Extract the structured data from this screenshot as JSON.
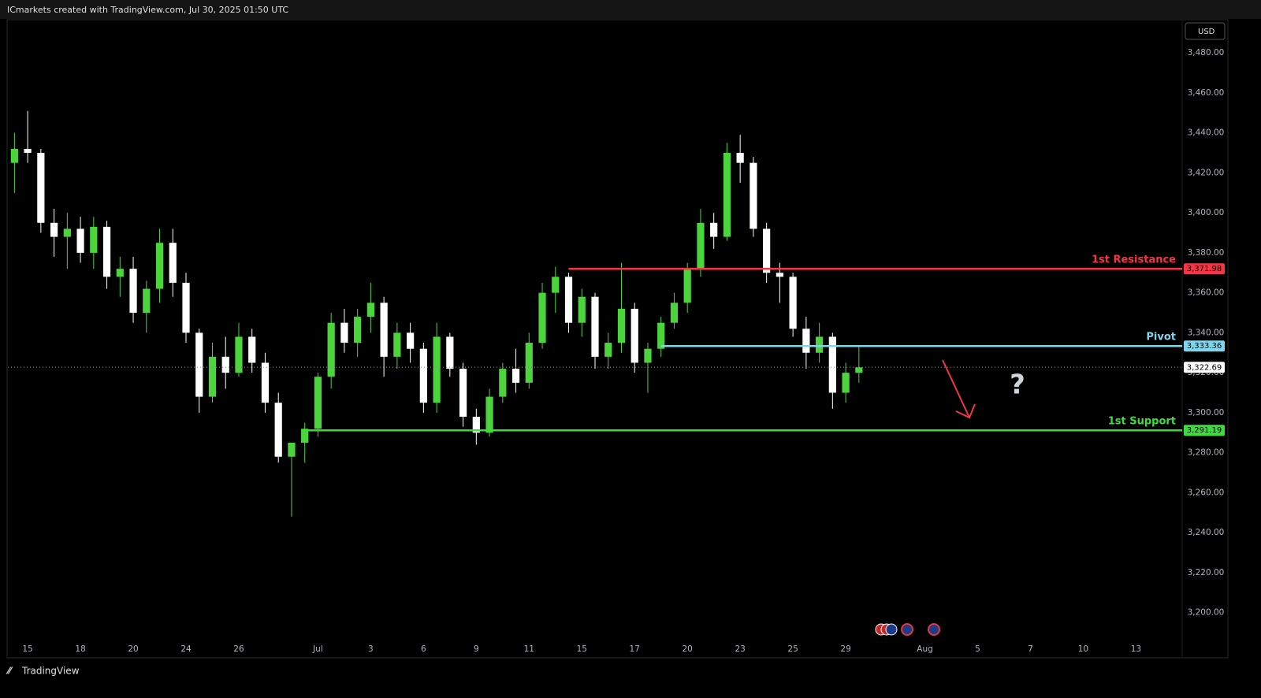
{
  "header": "ICmarkets created with TradingView.com, Jul 30, 2025 01:50 UTC",
  "currency": "USD",
  "brand": "TradingView",
  "chart_data": {
    "type": "candlestick",
    "categories": [
      null,
      "15",
      null,
      null,
      null,
      "18",
      null,
      null,
      null,
      "20",
      null,
      null,
      null,
      "24",
      null,
      null,
      null,
      "26",
      null,
      null,
      null,
      null,
      null,
      "Jul",
      null,
      null,
      null,
      "3",
      null,
      null,
      null,
      "6",
      null,
      null,
      null,
      "9",
      null,
      null,
      null,
      "11",
      null,
      null,
      null,
      "15",
      null,
      null,
      null,
      "17",
      null,
      null,
      null,
      "20",
      null,
      null,
      null,
      "23",
      null,
      null,
      null,
      "25",
      null,
      null,
      null,
      "29",
      null,
      null,
      null,
      null,
      null,
      "Aug",
      null,
      null,
      null,
      "5",
      null,
      null,
      null,
      "7",
      null,
      null,
      null,
      "10",
      null,
      null,
      null,
      "13",
      null,
      null,
      null
    ],
    "open": [
      3425,
      3432,
      3430,
      3395,
      3388,
      3392,
      3380,
      3393,
      3368,
      3372,
      3350,
      3362,
      3385,
      3365,
      3340,
      3308,
      3328,
      3320,
      3338,
      3325,
      3305,
      3278,
      3285,
      3292,
      3318,
      3345,
      3335,
      3348,
      3355,
      3328,
      3340,
      3332,
      3305,
      3338,
      3322,
      3298,
      3290,
      3308,
      3322,
      3315,
      3335,
      3360,
      3368,
      3345,
      3358,
      3328,
      3335,
      3352,
      3325,
      3332,
      3345,
      3355,
      3372,
      3395,
      3388,
      3430,
      3425,
      3392,
      3370,
      3368,
      3342,
      3330,
      3338,
      3310,
      3320,
      null,
      null,
      null,
      null,
      null,
      null,
      null,
      null,
      null,
      null,
      null,
      null,
      null,
      null,
      null,
      null,
      null,
      null,
      null,
      null,
      null,
      null,
      null,
      null
    ],
    "high": [
      3440,
      3451,
      3432,
      3402,
      3400,
      3398,
      3398,
      3396,
      3378,
      3378,
      3366,
      3392,
      3392,
      3370,
      3342,
      3335,
      3338,
      3345,
      3342,
      3330,
      3310,
      3285,
      3295,
      3320,
      3350,
      3352,
      3352,
      3365,
      3358,
      3345,
      3345,
      3335,
      3345,
      3340,
      3325,
      3302,
      3312,
      3325,
      3332,
      3340,
      3365,
      3373,
      3370,
      3362,
      3360,
      3340,
      3375,
      3355,
      3335,
      3348,
      3360,
      3375,
      3402,
      3400,
      3435,
      3439,
      3428,
      3395,
      3375,
      3370,
      3348,
      3345,
      3340,
      3325,
      3333,
      null,
      null,
      null,
      null,
      null,
      null,
      null,
      null,
      null,
      null,
      null,
      null,
      null,
      null,
      null,
      null,
      null,
      null,
      null,
      null,
      null,
      null,
      null,
      null
    ],
    "low": [
      3410,
      3425,
      3390,
      3378,
      3372,
      3375,
      3372,
      3362,
      3358,
      3345,
      3340,
      3355,
      3358,
      3335,
      3300,
      3305,
      3312,
      3318,
      3320,
      3300,
      3275,
      3248,
      3275,
      3288,
      3312,
      3330,
      3328,
      3340,
      3318,
      3322,
      3325,
      3300,
      3300,
      3318,
      3293,
      3284,
      3288,
      3305,
      3310,
      3312,
      3332,
      3350,
      3340,
      3338,
      3322,
      3322,
      3330,
      3320,
      3310,
      3328,
      3342,
      3350,
      3368,
      3382,
      3386,
      3415,
      3388,
      3365,
      3355,
      3338,
      3322,
      3325,
      3302,
      3305,
      3315,
      null,
      null,
      null,
      null,
      null,
      null,
      null,
      null,
      null,
      null,
      null,
      null,
      null,
      null,
      null,
      null,
      null,
      null,
      null,
      null,
      null,
      null,
      null,
      null
    ],
    "close": [
      3432,
      3430,
      3395,
      3388,
      3392,
      3380,
      3393,
      3368,
      3372,
      3350,
      3362,
      3385,
      3365,
      3340,
      3308,
      3328,
      3320,
      3338,
      3325,
      3305,
      3278,
      3285,
      3292,
      3318,
      3345,
      3335,
      3348,
      3355,
      3328,
      3340,
      3332,
      3305,
      3338,
      3322,
      3298,
      3290,
      3308,
      3322,
      3315,
      3335,
      3360,
      3368,
      3345,
      3358,
      3328,
      3335,
      3352,
      3325,
      3332,
      3345,
      3355,
      3372,
      3395,
      3388,
      3430,
      3425,
      3392,
      3370,
      3368,
      3342,
      3330,
      3338,
      3310,
      3320,
      3322.69,
      null,
      null,
      null,
      null,
      null,
      null,
      null,
      null,
      null,
      null,
      null,
      null,
      null,
      null,
      null,
      null,
      null,
      null,
      null,
      null,
      null,
      null,
      null,
      null
    ],
    "up_color": "#4cd43c",
    "down_color": "#ffffff",
    "last_price_label": "3,322.69",
    "levels": [
      {
        "name": "1st Resistance",
        "value": 3371.98,
        "value_label": "3,371.98",
        "color": "#f23645",
        "start": 42
      },
      {
        "name": "Pivot",
        "value": 3333.36,
        "value_label": "3,333.36",
        "color": "#7fd6ea",
        "start": 49
      },
      {
        "name": "1st Support",
        "value": 3291.19,
        "value_label": "3,291.19",
        "color": "#3ddc3d",
        "start": 22
      }
    ],
    "annotation": "?",
    "ylim": [
      3177,
      3497
    ],
    "yticks": [
      {
        "value": 3200,
        "label": "3,200.00"
      },
      {
        "value": 3220,
        "label": "3,220.00"
      },
      {
        "value": 3240,
        "label": "3,240.00"
      },
      {
        "value": 3260,
        "label": "3,260.00"
      },
      {
        "value": 3280,
        "label": "3,280.00"
      },
      {
        "value": 3300,
        "label": "3,300.00"
      },
      {
        "value": 3320,
        "label": "3,320.00"
      },
      {
        "value": 3340,
        "label": "3,340.00"
      },
      {
        "value": 3360,
        "label": "3,360.00"
      },
      {
        "value": 3380,
        "label": "3,380.00"
      },
      {
        "value": 3400,
        "label": "3,400.00"
      },
      {
        "value": 3420,
        "label": "3,420.00"
      },
      {
        "value": 3440,
        "label": "3,440.00"
      },
      {
        "value": 3460,
        "label": "3,460.00"
      },
      {
        "value": 3480,
        "label": "3,480.00"
      }
    ],
    "grid": false
  }
}
